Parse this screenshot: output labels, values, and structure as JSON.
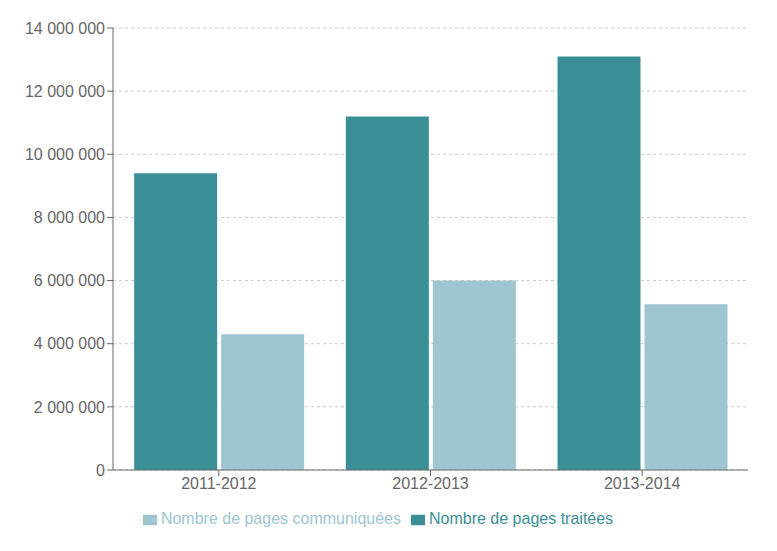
{
  "chart_data": {
    "type": "bar",
    "categories": [
      "2011-2012",
      "2012-2013",
      "2013-2014"
    ],
    "series": [
      {
        "name": "Nombre de pages traitées",
        "color": "#3a8f96",
        "values": [
          9400000,
          11200000,
          13100000
        ]
      },
      {
        "name": "Nombre de pages communiquées",
        "color": "#9ec5d0",
        "values": [
          4300000,
          6000000,
          5250000
        ]
      }
    ],
    "ylim": [
      0,
      14000000
    ],
    "yticks": [
      0,
      {
        "value": 2000000,
        "label": "2 000 000"
      },
      {
        "value": 4000000,
        "label": "4 000 000"
      },
      {
        "value": 6000000,
        "label": "6 000 000"
      },
      {
        "value": 8000000,
        "label": "8 000 000"
      },
      {
        "value": 10000000,
        "label": "10 000 000"
      },
      {
        "value": 12000000,
        "label": "12 000 000"
      },
      {
        "value": 14000000,
        "label": "14 000 000"
      }
    ],
    "grid": true,
    "legend": "bottom"
  }
}
